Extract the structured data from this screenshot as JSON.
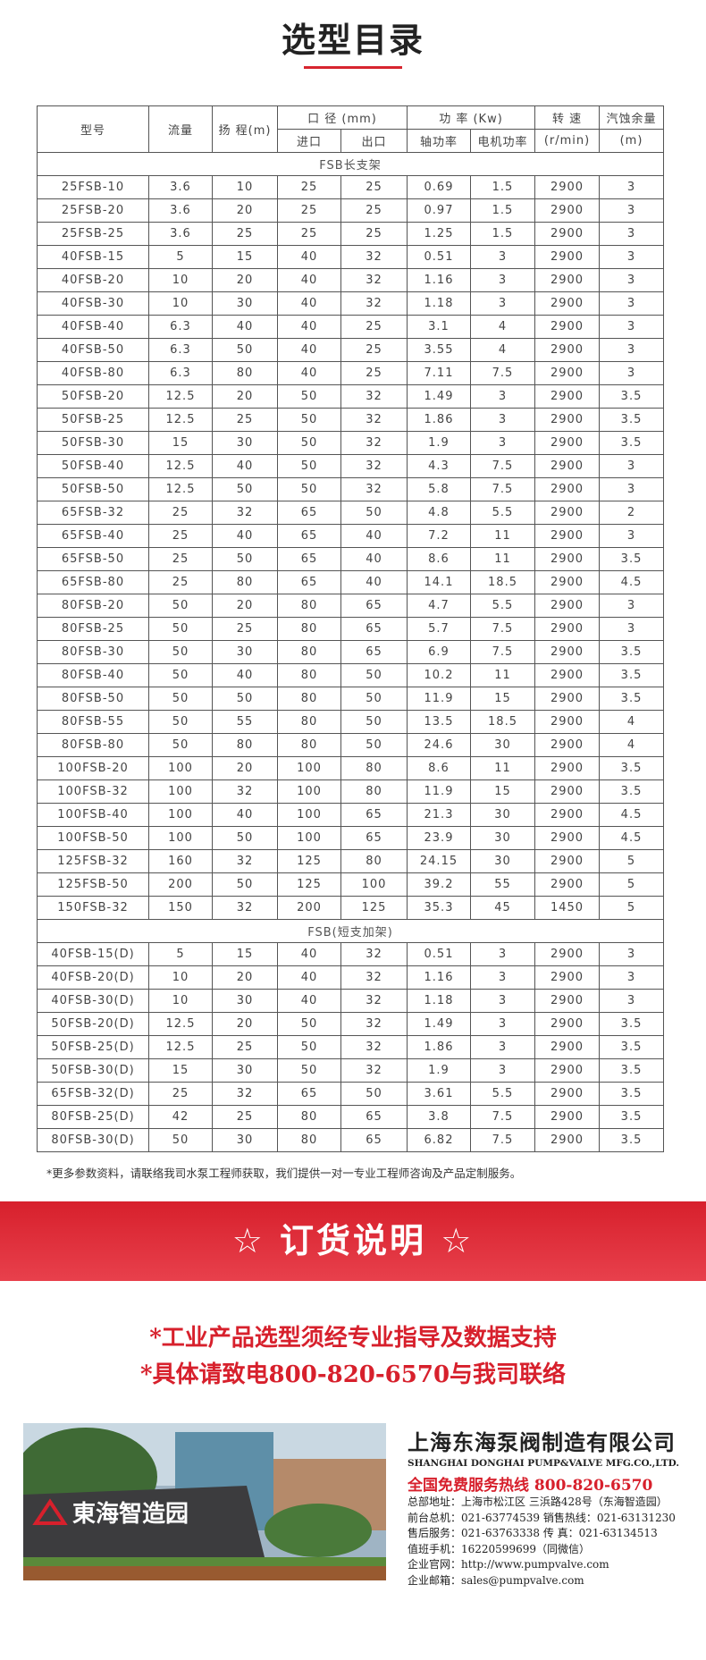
{
  "header": {
    "title": "选型目录"
  },
  "table": {
    "head1": [
      "型号",
      "流量",
      "扬 程(m)",
      "口 径 (mm)",
      "功 率 (Kw)",
      "转 速",
      "汽蚀余量"
    ],
    "head2": [
      "进口",
      "出口",
      "轴功率",
      "电机功率",
      "(r/min)",
      "(m)"
    ],
    "sections": [
      {
        "title": "FSB长支架",
        "rows": [
          [
            "25FSB-10",
            3.6,
            10,
            25,
            25,
            0.69,
            1.5,
            2900,
            3
          ],
          [
            "25FSB-20",
            3.6,
            20,
            25,
            25,
            0.97,
            1.5,
            2900,
            3
          ],
          [
            "25FSB-25",
            3.6,
            25,
            25,
            25,
            1.25,
            1.5,
            2900,
            3
          ],
          [
            "40FSB-15",
            5,
            15,
            40,
            32,
            0.51,
            3,
            2900,
            3
          ],
          [
            "40FSB-20",
            10,
            20,
            40,
            32,
            1.16,
            3,
            2900,
            3
          ],
          [
            "40FSB-30",
            10,
            30,
            40,
            32,
            1.18,
            3,
            2900,
            3
          ],
          [
            "40FSB-40",
            6.3,
            40,
            40,
            25,
            3.1,
            4,
            2900,
            3
          ],
          [
            "40FSB-50",
            6.3,
            50,
            40,
            25,
            3.55,
            4,
            2900,
            3
          ],
          [
            "40FSB-80",
            6.3,
            80,
            40,
            25,
            7.11,
            7.5,
            2900,
            3
          ],
          [
            "50FSB-20",
            12.5,
            20,
            50,
            32,
            1.49,
            3,
            2900,
            3.5
          ],
          [
            "50FSB-25",
            12.5,
            25,
            50,
            32,
            1.86,
            3,
            2900,
            3.5
          ],
          [
            "50FSB-30",
            15,
            30,
            50,
            32,
            1.9,
            3,
            2900,
            3.5
          ],
          [
            "50FSB-40",
            12.5,
            40,
            50,
            32,
            4.3,
            7.5,
            2900,
            3
          ],
          [
            "50FSB-50",
            12.5,
            50,
            50,
            32,
            5.8,
            7.5,
            2900,
            3
          ],
          [
            "65FSB-32",
            25,
            32,
            65,
            50,
            4.8,
            5.5,
            2900,
            2
          ],
          [
            "65FSB-40",
            25,
            40,
            65,
            40,
            7.2,
            11,
            2900,
            3
          ],
          [
            "65FSB-50",
            25,
            50,
            65,
            40,
            8.6,
            11,
            2900,
            3.5
          ],
          [
            "65FSB-80",
            25,
            80,
            65,
            40,
            14.1,
            18.5,
            2900,
            4.5
          ],
          [
            "80FSB-20",
            50,
            20,
            80,
            65,
            4.7,
            5.5,
            2900,
            3
          ],
          [
            "80FSB-25",
            50,
            25,
            80,
            65,
            5.7,
            7.5,
            2900,
            3
          ],
          [
            "80FSB-30",
            50,
            30,
            80,
            65,
            6.9,
            7.5,
            2900,
            3.5
          ],
          [
            "80FSB-40",
            50,
            40,
            80,
            50,
            10.2,
            11,
            2900,
            3.5
          ],
          [
            "80FSB-50",
            50,
            50,
            80,
            50,
            11.9,
            15,
            2900,
            3.5
          ],
          [
            "80FSB-55",
            50,
            55,
            80,
            50,
            13.5,
            18.5,
            2900,
            4
          ],
          [
            "80FSB-80",
            50,
            80,
            80,
            50,
            24.6,
            30,
            2900,
            4
          ],
          [
            "100FSB-20",
            100,
            20,
            100,
            80,
            8.6,
            11,
            2900,
            3.5
          ],
          [
            "100FSB-32",
            100,
            32,
            100,
            80,
            11.9,
            15,
            2900,
            3.5
          ],
          [
            "100FSB-40",
            100,
            40,
            100,
            65,
            21.3,
            30,
            2900,
            4.5
          ],
          [
            "100FSB-50",
            100,
            50,
            100,
            65,
            23.9,
            30,
            2900,
            4.5
          ],
          [
            "125FSB-32",
            160,
            32,
            125,
            80,
            24.15,
            30,
            2900,
            5
          ],
          [
            "125FSB-50",
            200,
            50,
            125,
            100,
            39.2,
            55,
            2900,
            5
          ],
          [
            "150FSB-32",
            150,
            32,
            200,
            125,
            35.3,
            45,
            1450,
            5
          ]
        ]
      },
      {
        "title": "FSB(短支加架)",
        "rows": [
          [
            "40FSB-15(D)",
            5,
            15,
            40,
            32,
            0.51,
            3,
            2900,
            3
          ],
          [
            "40FSB-20(D)",
            10,
            20,
            40,
            32,
            1.16,
            3,
            2900,
            3
          ],
          [
            "40FSB-30(D)",
            10,
            30,
            40,
            32,
            1.18,
            3,
            2900,
            3
          ],
          [
            "50FSB-20(D)",
            12.5,
            20,
            50,
            32,
            1.49,
            3,
            2900,
            3.5
          ],
          [
            "50FSB-25(D)",
            12.5,
            25,
            50,
            32,
            1.86,
            3,
            2900,
            3.5
          ],
          [
            "50FSB-30(D)",
            15,
            30,
            50,
            32,
            1.9,
            3,
            2900,
            3.5
          ],
          [
            "65FSB-32(D)",
            25,
            32,
            65,
            50,
            3.61,
            5.5,
            2900,
            3.5
          ],
          [
            "80FSB-25(D)",
            42,
            25,
            80,
            65,
            3.8,
            7.5,
            2900,
            3.5
          ],
          [
            "80FSB-30(D)",
            50,
            30,
            80,
            65,
            6.82,
            7.5,
            2900,
            3.5
          ]
        ]
      }
    ]
  },
  "note": "*更多参数资料，请联络我司水泵工程师获取，我们提供一对一专业工程师咨询及产品定制服务。",
  "order": {
    "title": "☆ 订货说明 ☆",
    "lines": [
      "*工业产品选型须经专业指导及数据支持",
      "*具体请致电800-820-6570与我司联络"
    ]
  },
  "company": {
    "photo_sign": "東海智造园",
    "name": "上海东海泵阀制造有限公司",
    "name_en": "SHANGHAI DONGHAI PUMP&VALVE MFG.CO.,LTD.",
    "hotline": "全国免费服务热线  800-820-6570",
    "lines": [
      "总部地址：上海市松江区 三浜路428号（东海智造园）",
      "前台总机：021-63774539   销售热线：021-63131230",
      "售后服务：021-63763338   传    真：021-63134513",
      "值班手机：16220599699（同微信）",
      "企业官网：http://www.pumpvalve.com",
      "企业邮箱：sales@pumpvalve.com"
    ]
  }
}
